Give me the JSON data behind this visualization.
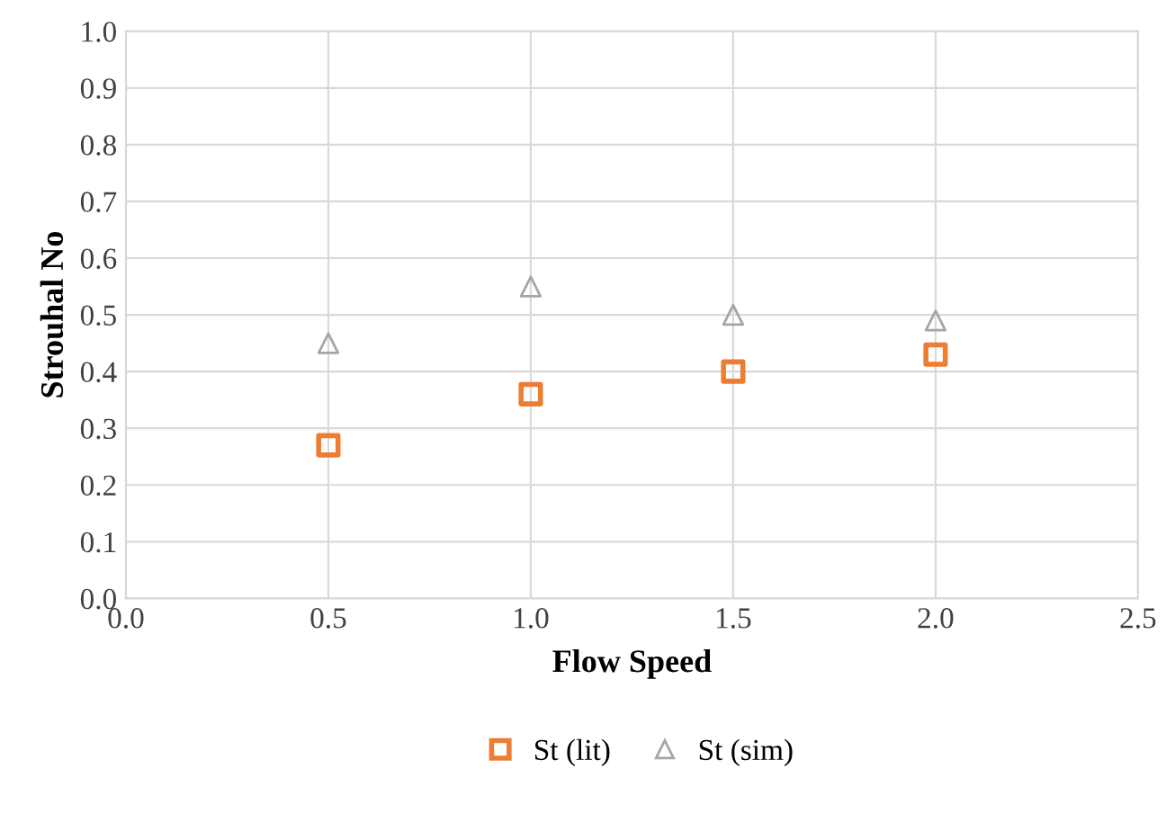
{
  "chart_data": {
    "type": "scatter",
    "xlabel": "Flow Speed",
    "ylabel": "Strouhal No",
    "x": [
      0.5,
      1.0,
      1.5,
      2.0
    ],
    "series": [
      {
        "name": "St (lit)",
        "color": "#ed7d31",
        "marker": "square",
        "values": [
          0.27,
          0.36,
          0.4,
          0.43
        ]
      },
      {
        "name": "St (sim)",
        "color": "#a5a5a5",
        "marker": "triangle",
        "values": [
          0.45,
          0.55,
          0.5,
          0.49
        ]
      }
    ],
    "xlim": [
      0.0,
      2.5
    ],
    "xticks": [
      {
        "value": 0.0,
        "label": "0.0"
      },
      {
        "value": 0.5,
        "label": "0.5"
      },
      {
        "value": 1.0,
        "label": "1.0"
      },
      {
        "value": 1.5,
        "label": "1.5"
      },
      {
        "value": 2.0,
        "label": "2.0"
      },
      {
        "value": 2.5,
        "label": "2.5"
      }
    ],
    "ylim": [
      0.0,
      1.0
    ],
    "yticks": [
      {
        "value": 0.0,
        "label": "0.0"
      },
      {
        "value": 0.1,
        "label": "0.1"
      },
      {
        "value": 0.2,
        "label": "0.2"
      },
      {
        "value": 0.3,
        "label": "0.3"
      },
      {
        "value": 0.4,
        "label": "0.4"
      },
      {
        "value": 0.5,
        "label": "0.5"
      },
      {
        "value": 0.6,
        "label": "0.6"
      },
      {
        "value": 0.7,
        "label": "0.7"
      },
      {
        "value": 0.8,
        "label": "0.8"
      },
      {
        "value": 0.9,
        "label": "0.9"
      },
      {
        "value": 1.0,
        "label": "1.0"
      }
    ],
    "grid": true,
    "legend": "bottom"
  }
}
